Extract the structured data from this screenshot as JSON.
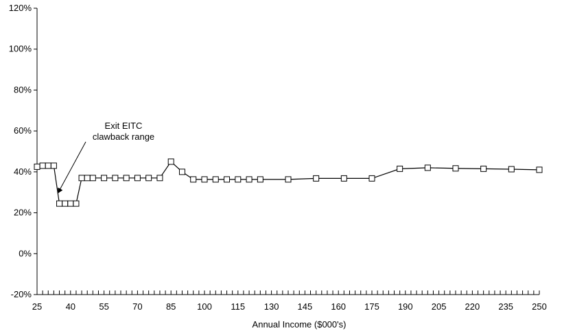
{
  "chart_data": {
    "type": "line",
    "title": "",
    "xlabel": "Annual Income ($000's)",
    "ylabel": "",
    "xlim": [
      25,
      250
    ],
    "ylim": [
      -20,
      120
    ],
    "x_ticks": [
      25,
      40,
      55,
      70,
      85,
      100,
      115,
      130,
      145,
      160,
      175,
      190,
      205,
      220,
      235,
      250
    ],
    "x_tick_labels": [
      "25",
      "40",
      "55",
      "70",
      "85",
      "100",
      "115",
      "130",
      "145",
      "160",
      "175",
      "190",
      "205",
      "220",
      "235",
      "250"
    ],
    "y_ticks": [
      -20,
      0,
      20,
      40,
      60,
      80,
      100,
      120
    ],
    "y_tick_labels": [
      "-20%",
      "0%",
      "20%",
      "40%",
      "60%",
      "80%",
      "100%",
      "120%"
    ],
    "grid": false,
    "legend": "none",
    "marker": "hollow-square",
    "line_color": "#000000",
    "series": [
      {
        "points": [
          {
            "x": 25,
            "y": 42.5
          },
          {
            "x": 27.5,
            "y": 43
          },
          {
            "x": 30,
            "y": 43
          },
          {
            "x": 32.5,
            "y": 43
          },
          {
            "x": 35,
            "y": 24.5
          },
          {
            "x": 37.5,
            "y": 24.5
          },
          {
            "x": 40,
            "y": 24.5
          },
          {
            "x": 42.5,
            "y": 24.5
          },
          {
            "x": 45,
            "y": 37
          },
          {
            "x": 47.5,
            "y": 37
          },
          {
            "x": 50,
            "y": 37
          },
          {
            "x": 55,
            "y": 37
          },
          {
            "x": 60,
            "y": 37
          },
          {
            "x": 65,
            "y": 37
          },
          {
            "x": 70,
            "y": 37
          },
          {
            "x": 75,
            "y": 37
          },
          {
            "x": 80,
            "y": 37
          },
          {
            "x": 85,
            "y": 45
          },
          {
            "x": 90,
            "y": 40
          },
          {
            "x": 95,
            "y": 36.3
          },
          {
            "x": 100,
            "y": 36.3
          },
          {
            "x": 105,
            "y": 36.3
          },
          {
            "x": 110,
            "y": 36.3
          },
          {
            "x": 115,
            "y": 36.3
          },
          {
            "x": 120,
            "y": 36.3
          },
          {
            "x": 125,
            "y": 36.3
          },
          {
            "x": 137.5,
            "y": 36.3
          },
          {
            "x": 150,
            "y": 36.8
          },
          {
            "x": 162.5,
            "y": 36.8
          },
          {
            "x": 175,
            "y": 36.8
          },
          {
            "x": 187.5,
            "y": 41.5
          },
          {
            "x": 200,
            "y": 42
          },
          {
            "x": 212.5,
            "y": 41.7
          },
          {
            "x": 225,
            "y": 41.5
          },
          {
            "x": 237.5,
            "y": 41.3
          },
          {
            "x": 250,
            "y": 41
          }
        ]
      }
    ],
    "annotations": [
      {
        "lines": [
          "Exit EITC",
          "clawback range"
        ],
        "points_to": {
          "x": 35,
          "y": 27
        }
      }
    ]
  }
}
